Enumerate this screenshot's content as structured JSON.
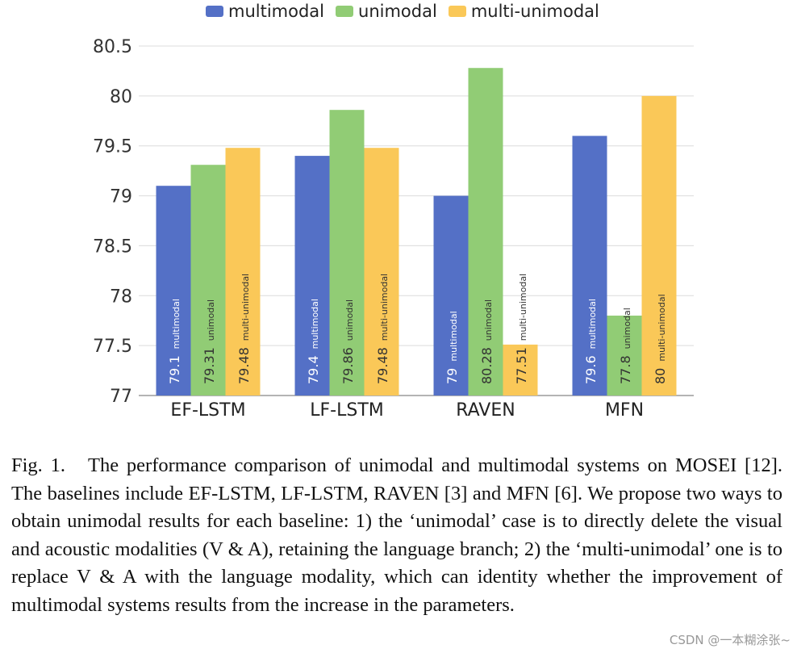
{
  "chart_data": {
    "type": "bar",
    "categories": [
      "EF-LSTM",
      "LF-LSTM",
      "RAVEN",
      "MFN"
    ],
    "series": [
      {
        "name": "multimodal",
        "color": "#5470c6",
        "values": [
          79.1,
          79.4,
          79,
          79.6
        ]
      },
      {
        "name": "unimodal",
        "color": "#91cc75",
        "values": [
          79.31,
          79.86,
          80.28,
          77.8
        ]
      },
      {
        "name": "multi-unimodal",
        "color": "#fac858",
        "values": [
          79.48,
          79.48,
          77.51,
          80
        ]
      }
    ],
    "ylim": [
      77,
      80.5
    ],
    "yticks": [
      "77",
      "77.5",
      "78",
      "78.5",
      "79",
      "79.5",
      "80",
      "80.5"
    ],
    "grid": true,
    "legend": "top-center",
    "data_labels": "inside-bar-vertical"
  },
  "caption": {
    "label": "Fig. 1.",
    "text": "The performance comparison of unimodal and multimodal systems on MOSEI [12]. The baselines include EF-LSTM, LF-LSTM, RAVEN [3] and MFN [6]. We propose two ways to obtain unimodal results for each baseline: 1) the ‘unimodal’ case is to directly delete the visual and acoustic modalities (V & A), retaining the language branch; 2) the ‘multi-unimodal’ one is to replace V & A with the language modality, which can identity whether the improvement of multimodal systems results from the increase in the parameters."
  },
  "watermark": "CSDN @一本糊涂张~"
}
